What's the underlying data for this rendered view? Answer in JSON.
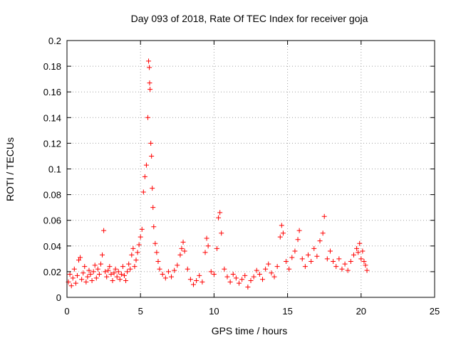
{
  "chart_data": {
    "type": "scatter",
    "title": "Day 093 of 2018, Rate Of TEC Index for receiver goja",
    "xlabel": "GPS time / hours",
    "ylabel": "ROTI / TECUs",
    "xlim": [
      0,
      25
    ],
    "ylim": [
      0,
      0.2
    ],
    "xticks": [
      "0",
      "5",
      "10",
      "15",
      "20",
      "25"
    ],
    "yticks": [
      "0",
      "0.02",
      "0.04",
      "0.06",
      "0.08",
      "0.1",
      "0.12",
      "0.14",
      "0.16",
      "0.18",
      "0.2"
    ],
    "grid": true,
    "marker": "+",
    "marker_color": "#ff0000",
    "series": [
      {
        "points": [
          [
            0.1,
            0.012
          ],
          [
            0.2,
            0.018
          ],
          [
            0.3,
            0.009
          ],
          [
            0.4,
            0.015
          ],
          [
            0.5,
            0.022
          ],
          [
            0.6,
            0.011
          ],
          [
            0.7,
            0.017
          ],
          [
            0.8,
            0.029
          ],
          [
            0.9,
            0.031
          ],
          [
            1.0,
            0.014
          ],
          [
            1.1,
            0.019
          ],
          [
            1.2,
            0.024
          ],
          [
            1.3,
            0.012
          ],
          [
            1.4,
            0.016
          ],
          [
            1.5,
            0.021
          ],
          [
            1.6,
            0.018
          ],
          [
            1.7,
            0.013
          ],
          [
            1.8,
            0.02
          ],
          [
            1.9,
            0.025
          ],
          [
            2.0,
            0.015
          ],
          [
            2.1,
            0.022
          ],
          [
            2.2,
            0.018
          ],
          [
            2.3,
            0.026
          ],
          [
            2.4,
            0.033
          ],
          [
            2.5,
            0.052
          ],
          [
            2.6,
            0.02
          ],
          [
            2.7,
            0.016
          ],
          [
            2.8,
            0.021
          ],
          [
            2.9,
            0.024
          ],
          [
            3.0,
            0.018
          ],
          [
            3.1,
            0.013
          ],
          [
            3.2,
            0.019
          ],
          [
            3.3,
            0.022
          ],
          [
            3.4,
            0.016
          ],
          [
            3.5,
            0.02
          ],
          [
            3.6,
            0.014
          ],
          [
            3.7,
            0.018
          ],
          [
            3.8,
            0.024
          ],
          [
            3.9,
            0.017
          ],
          [
            4.0,
            0.013
          ],
          [
            4.1,
            0.02
          ],
          [
            4.2,
            0.026
          ],
          [
            4.3,
            0.022
          ],
          [
            4.4,
            0.033
          ],
          [
            4.5,
            0.038
          ],
          [
            4.6,
            0.024
          ],
          [
            4.7,
            0.029
          ],
          [
            4.8,
            0.035
          ],
          [
            4.9,
            0.041
          ],
          [
            5.0,
            0.047
          ],
          [
            5.1,
            0.053
          ],
          [
            5.2,
            0.082
          ],
          [
            5.3,
            0.094
          ],
          [
            5.4,
            0.103
          ],
          [
            5.5,
            0.14
          ],
          [
            5.55,
            0.184
          ],
          [
            5.6,
            0.179
          ],
          [
            5.62,
            0.167
          ],
          [
            5.65,
            0.162
          ],
          [
            5.7,
            0.12
          ],
          [
            5.75,
            0.11
          ],
          [
            5.8,
            0.085
          ],
          [
            5.85,
            0.07
          ],
          [
            5.9,
            0.055
          ],
          [
            6.0,
            0.042
          ],
          [
            6.1,
            0.035
          ],
          [
            6.2,
            0.028
          ],
          [
            6.3,
            0.022
          ],
          [
            6.5,
            0.018
          ],
          [
            6.7,
            0.015
          ],
          [
            6.9,
            0.02
          ],
          [
            7.1,
            0.016
          ],
          [
            7.3,
            0.021
          ],
          [
            7.5,
            0.025
          ],
          [
            7.7,
            0.033
          ],
          [
            7.8,
            0.038
          ],
          [
            7.9,
            0.043
          ],
          [
            8.0,
            0.036
          ],
          [
            8.2,
            0.022
          ],
          [
            8.4,
            0.014
          ],
          [
            8.6,
            0.01
          ],
          [
            8.8,
            0.013
          ],
          [
            9.0,
            0.017
          ],
          [
            9.2,
            0.012
          ],
          [
            9.4,
            0.035
          ],
          [
            9.5,
            0.046
          ],
          [
            9.6,
            0.04
          ],
          [
            9.8,
            0.02
          ],
          [
            10.0,
            0.018
          ],
          [
            10.2,
            0.038
          ],
          [
            10.3,
            0.062
          ],
          [
            10.4,
            0.066
          ],
          [
            10.5,
            0.05
          ],
          [
            10.7,
            0.022
          ],
          [
            10.9,
            0.016
          ],
          [
            11.1,
            0.012
          ],
          [
            11.3,
            0.018
          ],
          [
            11.5,
            0.015
          ],
          [
            11.7,
            0.011
          ],
          [
            11.9,
            0.014
          ],
          [
            12.1,
            0.017
          ],
          [
            12.3,
            0.008
          ],
          [
            12.5,
            0.013
          ],
          [
            12.7,
            0.016
          ],
          [
            12.9,
            0.021
          ],
          [
            13.1,
            0.018
          ],
          [
            13.3,
            0.014
          ],
          [
            13.5,
            0.022
          ],
          [
            13.7,
            0.026
          ],
          [
            13.9,
            0.019
          ],
          [
            14.1,
            0.016
          ],
          [
            14.3,
            0.024
          ],
          [
            14.5,
            0.047
          ],
          [
            14.6,
            0.056
          ],
          [
            14.7,
            0.05
          ],
          [
            14.9,
            0.028
          ],
          [
            15.1,
            0.022
          ],
          [
            15.3,
            0.031
          ],
          [
            15.5,
            0.036
          ],
          [
            15.7,
            0.045
          ],
          [
            15.8,
            0.052
          ],
          [
            16.0,
            0.03
          ],
          [
            16.2,
            0.024
          ],
          [
            16.4,
            0.033
          ],
          [
            16.6,
            0.028
          ],
          [
            16.8,
            0.038
          ],
          [
            17.0,
            0.032
          ],
          [
            17.2,
            0.044
          ],
          [
            17.4,
            0.05
          ],
          [
            17.5,
            0.063
          ],
          [
            17.7,
            0.03
          ],
          [
            17.9,
            0.036
          ],
          [
            18.1,
            0.028
          ],
          [
            18.3,
            0.024
          ],
          [
            18.5,
            0.03
          ],
          [
            18.7,
            0.022
          ],
          [
            18.9,
            0.026
          ],
          [
            19.1,
            0.021
          ],
          [
            19.3,
            0.028
          ],
          [
            19.5,
            0.033
          ],
          [
            19.7,
            0.038
          ],
          [
            19.8,
            0.035
          ],
          [
            19.9,
            0.042
          ],
          [
            20.0,
            0.03
          ],
          [
            20.1,
            0.036
          ],
          [
            20.2,
            0.028
          ],
          [
            20.3,
            0.025
          ],
          [
            20.4,
            0.021
          ]
        ]
      }
    ]
  }
}
